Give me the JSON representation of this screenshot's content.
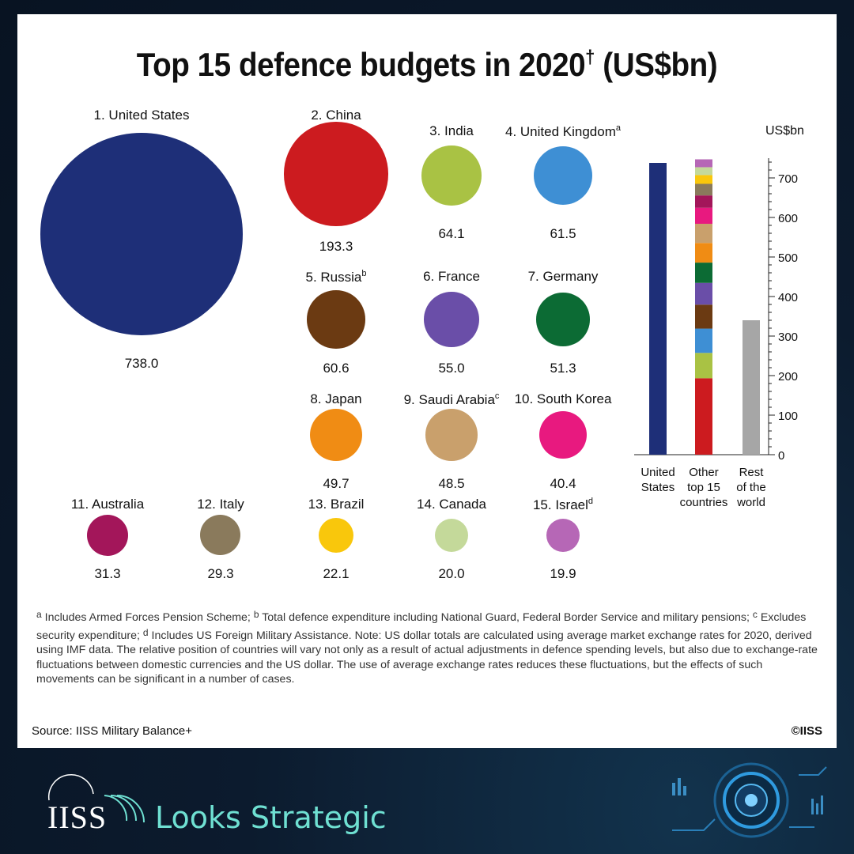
{
  "title": "Top 15 defence budgets in 2020",
  "title_mark": "†",
  "title_unit": "(US$bn)",
  "chart_data": [
    {
      "type": "bubble",
      "title": "Top 15 defence budgets in 2020† (US$bn)",
      "countries": [
        {
          "label": "1. United States",
          "mark": "",
          "value": "738.0",
          "color": "#1e2f78"
        },
        {
          "label": "2. China",
          "mark": "",
          "value": "193.3",
          "color": "#cc1b1f"
        },
        {
          "label": "3. India",
          "mark": "",
          "value": "64.1",
          "color": "#a9c244"
        },
        {
          "label": "4. United Kingdom",
          "mark": "a",
          "value": "61.5",
          "color": "#3e8fd4"
        },
        {
          "label": "5. Russia",
          "mark": "b",
          "value": "60.6",
          "color": "#6b3a12"
        },
        {
          "label": "6. France",
          "mark": "",
          "value": "55.0",
          "color": "#6a4ea8"
        },
        {
          "label": "7. Germany",
          "mark": "",
          "value": "51.3",
          "color": "#0c6b34"
        },
        {
          "label": "8. Japan",
          "mark": "",
          "value": "49.7",
          "color": "#f08c14"
        },
        {
          "label": "9. Saudi Arabia",
          "mark": "c",
          "value": "48.5",
          "color": "#c9a06c"
        },
        {
          "label": "10. South Korea",
          "mark": "",
          "value": "40.4",
          "color": "#e8197f"
        },
        {
          "label": "11. Australia",
          "mark": "",
          "value": "31.3",
          "color": "#a3165a"
        },
        {
          "label": "12. Italy",
          "mark": "",
          "value": "29.3",
          "color": "#8a7a5c"
        },
        {
          "label": "13. Brazil",
          "mark": "",
          "value": "22.1",
          "color": "#f9c70c"
        },
        {
          "label": "14. Canada",
          "mark": "",
          "value": "20.0",
          "color": "#c4d99a"
        },
        {
          "label": "15. Israel",
          "mark": "d",
          "value": "19.9",
          "color": "#b667b6"
        }
      ]
    },
    {
      "type": "bar",
      "ylabel": "US$bn",
      "ylim": [
        0,
        750
      ],
      "yticks": [
        "0",
        "100",
        "200",
        "300",
        "400",
        "500",
        "600",
        "700"
      ],
      "categories": [
        "United States",
        "Other top 15 countries",
        "Rest of the world"
      ],
      "category_lines": [
        [
          "United",
          "States"
        ],
        [
          "Other",
          "top 15",
          "countries"
        ],
        [
          "Rest",
          "of the",
          "world"
        ]
      ],
      "bars": [
        {
          "name": "United States",
          "value": 738.0,
          "color": "#1e2f78"
        },
        {
          "name": "Other top 15 countries",
          "stacked": true
        },
        {
          "name": "Rest of the world",
          "value": 340,
          "color": "#a6a6a6"
        }
      ]
    }
  ],
  "notes": {
    "a_mark": "a",
    "a_text": "Includes Armed Forces Pension Scheme;",
    "b_mark": "b",
    "b_text": "Total defence expenditure including National Guard, Federal Border Service and military pensions;",
    "c_mark": "c",
    "c_text": "Excludes security expenditure;",
    "d_mark": "d",
    "d_text": "Includes US Foreign Military Assistance. Note: US dollar totals are calculated using average market exchange rates for 2020, derived using IMF data. The relative position of countries will vary not only as a result of actual adjustments in defence spending levels, but also due to exchange-rate fluctuations between domestic currencies and the US dollar. The use of average exchange rates reduces these fluctuations, but the effects of such movements can be significant in a number of cases."
  },
  "source": "Source: IISS Military Balance+",
  "copyright": "©IISS",
  "footer": {
    "logo_text": "IISS",
    "tagline": "Looks Strategic"
  }
}
